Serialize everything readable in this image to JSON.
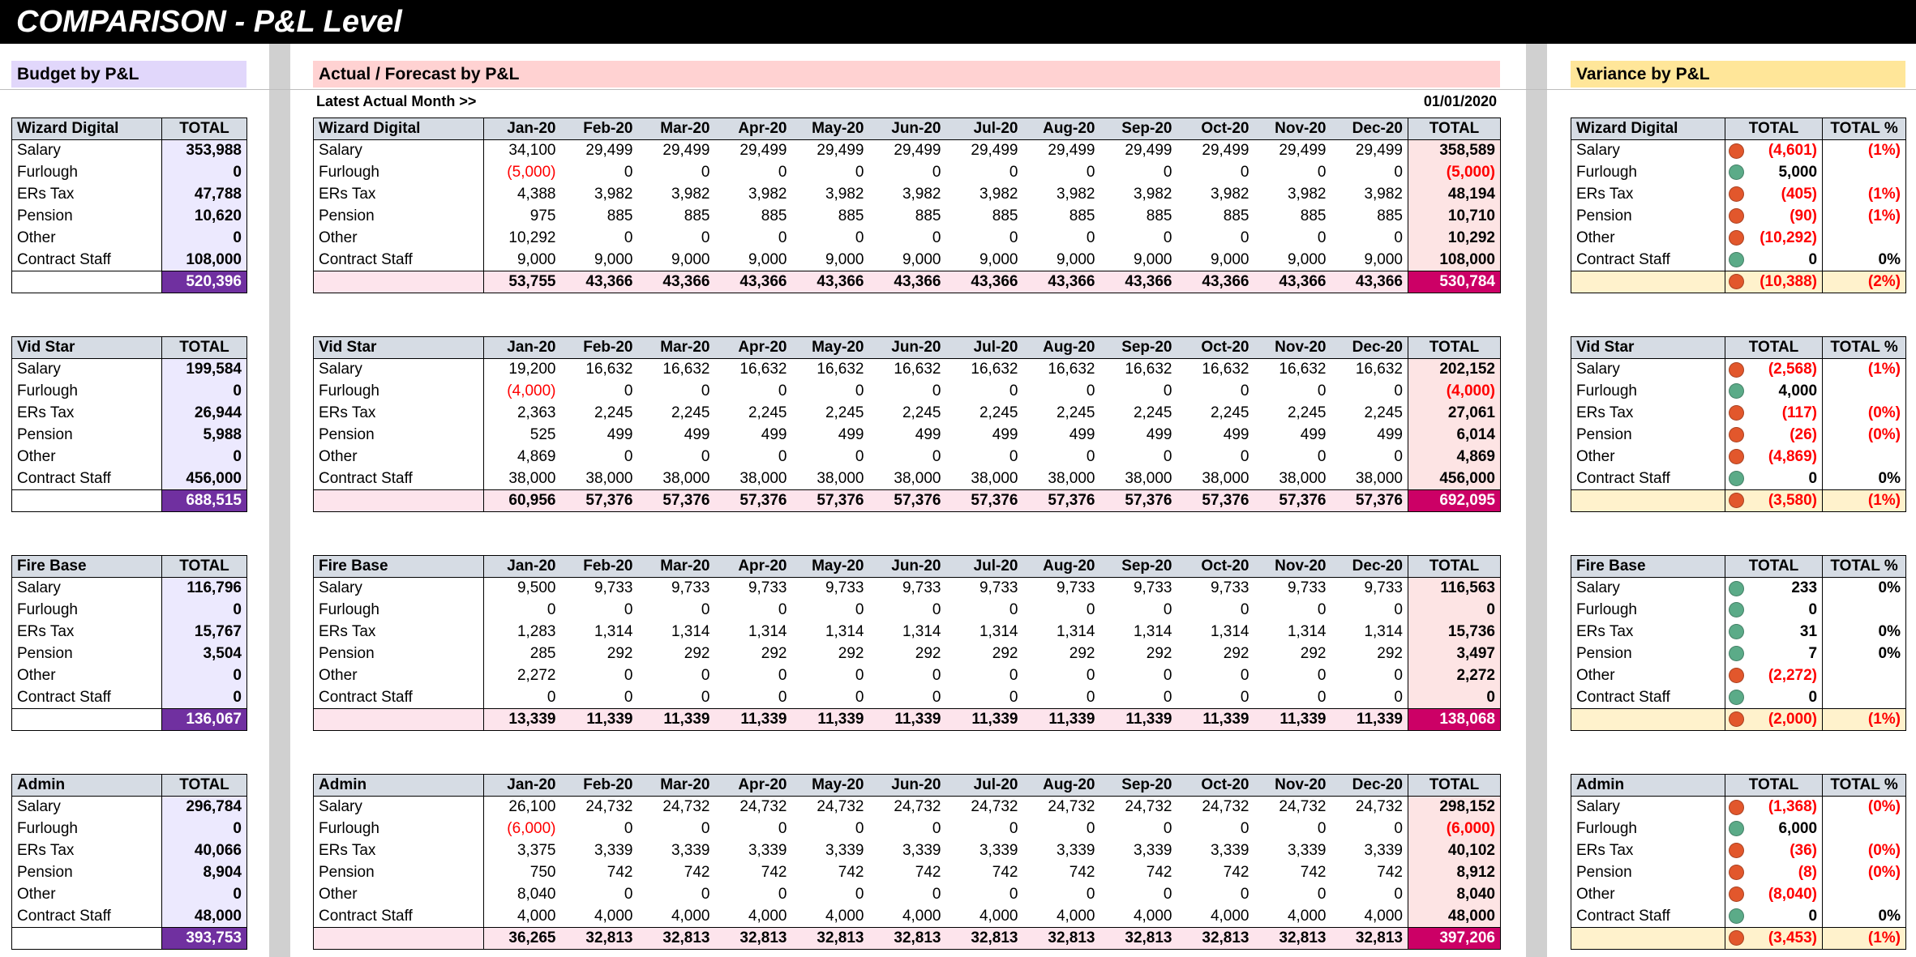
{
  "page_title": "COMPARISON - P&L Level",
  "colors": {
    "budget_header": "#e1d7fb",
    "budget_total_col": "#ece9fe",
    "budget_grand_total": "#7030a0",
    "actual_header": "#ffd2d2",
    "actual_total_col": "#fde4e4",
    "actual_total_row": "#fde4ec",
    "actual_grand_total": "#cc0066",
    "variance_header": "#ffe699",
    "variance_total_row": "#fff2cc",
    "indicator_red": "#e2572c",
    "indicator_green": "#5bab88",
    "negative_text": "#ff0000"
  },
  "budget": {
    "title": "Budget by P&L",
    "total_label": "TOTAL",
    "blocks": [
      {
        "name": "Wizard Digital",
        "rows": [
          {
            "label": "Salary",
            "total": "353,988"
          },
          {
            "label": "Furlough",
            "total": "0"
          },
          {
            "label": "ERs Tax",
            "total": "47,788"
          },
          {
            "label": "Pension",
            "total": "10,620"
          },
          {
            "label": "Other",
            "total": "0"
          },
          {
            "label": "Contract Staff",
            "total": "108,000"
          }
        ],
        "grand_total": "520,396"
      },
      {
        "name": "Vid Star",
        "rows": [
          {
            "label": "Salary",
            "total": "199,584"
          },
          {
            "label": "Furlough",
            "total": "0"
          },
          {
            "label": "ERs Tax",
            "total": "26,944"
          },
          {
            "label": "Pension",
            "total": "5,988"
          },
          {
            "label": "Other",
            "total": "0"
          },
          {
            "label": "Contract Staff",
            "total": "456,000"
          }
        ],
        "grand_total": "688,515"
      },
      {
        "name": "Fire Base",
        "rows": [
          {
            "label": "Salary",
            "total": "116,796"
          },
          {
            "label": "Furlough",
            "total": "0"
          },
          {
            "label": "ERs Tax",
            "total": "15,767"
          },
          {
            "label": "Pension",
            "total": "3,504"
          },
          {
            "label": "Other",
            "total": "0"
          },
          {
            "label": "Contract Staff",
            "total": "0"
          }
        ],
        "grand_total": "136,067"
      },
      {
        "name": "Admin",
        "rows": [
          {
            "label": "Salary",
            "total": "296,784"
          },
          {
            "label": "Furlough",
            "total": "0"
          },
          {
            "label": "ERs Tax",
            "total": "40,066"
          },
          {
            "label": "Pension",
            "total": "8,904"
          },
          {
            "label": "Other",
            "total": "0"
          },
          {
            "label": "Contract Staff",
            "total": "48,000"
          }
        ],
        "grand_total": "393,753"
      }
    ]
  },
  "actual": {
    "title": "Actual / Forecast by P&L",
    "latest_label": "Latest Actual Month >>",
    "latest_value": "01/01/2020",
    "months": [
      "Jan-20",
      "Feb-20",
      "Mar-20",
      "Apr-20",
      "May-20",
      "Jun-20",
      "Jul-20",
      "Aug-20",
      "Sep-20",
      "Oct-20",
      "Nov-20",
      "Dec-20"
    ],
    "total_label": "TOTAL",
    "blocks": [
      {
        "name": "Wizard Digital",
        "rows": [
          {
            "label": "Salary",
            "values": [
              "34,100",
              "29,499",
              "29,499",
              "29,499",
              "29,499",
              "29,499",
              "29,499",
              "29,499",
              "29,499",
              "29,499",
              "29,499",
              "29,499"
            ],
            "total": "358,589"
          },
          {
            "label": "Furlough",
            "values": [
              "(5,000)",
              "0",
              "0",
              "0",
              "0",
              "0",
              "0",
              "0",
              "0",
              "0",
              "0",
              "0"
            ],
            "total": "(5,000)"
          },
          {
            "label": "ERs Tax",
            "values": [
              "4,388",
              "3,982",
              "3,982",
              "3,982",
              "3,982",
              "3,982",
              "3,982",
              "3,982",
              "3,982",
              "3,982",
              "3,982",
              "3,982"
            ],
            "total": "48,194"
          },
          {
            "label": "Pension",
            "values": [
              "975",
              "885",
              "885",
              "885",
              "885",
              "885",
              "885",
              "885",
              "885",
              "885",
              "885",
              "885"
            ],
            "total": "10,710"
          },
          {
            "label": "Other",
            "values": [
              "10,292",
              "0",
              "0",
              "0",
              "0",
              "0",
              "0",
              "0",
              "0",
              "0",
              "0",
              "0"
            ],
            "total": "10,292"
          },
          {
            "label": "Contract Staff",
            "values": [
              "9,000",
              "9,000",
              "9,000",
              "9,000",
              "9,000",
              "9,000",
              "9,000",
              "9,000",
              "9,000",
              "9,000",
              "9,000",
              "9,000"
            ],
            "total": "108,000"
          }
        ],
        "month_totals": [
          "53,755",
          "43,366",
          "43,366",
          "43,366",
          "43,366",
          "43,366",
          "43,366",
          "43,366",
          "43,366",
          "43,366",
          "43,366",
          "43,366"
        ],
        "grand_total": "530,784"
      },
      {
        "name": "Vid Star",
        "rows": [
          {
            "label": "Salary",
            "values": [
              "19,200",
              "16,632",
              "16,632",
              "16,632",
              "16,632",
              "16,632",
              "16,632",
              "16,632",
              "16,632",
              "16,632",
              "16,632",
              "16,632"
            ],
            "total": "202,152"
          },
          {
            "label": "Furlough",
            "values": [
              "(4,000)",
              "0",
              "0",
              "0",
              "0",
              "0",
              "0",
              "0",
              "0",
              "0",
              "0",
              "0"
            ],
            "total": "(4,000)"
          },
          {
            "label": "ERs Tax",
            "values": [
              "2,363",
              "2,245",
              "2,245",
              "2,245",
              "2,245",
              "2,245",
              "2,245",
              "2,245",
              "2,245",
              "2,245",
              "2,245",
              "2,245"
            ],
            "total": "27,061"
          },
          {
            "label": "Pension",
            "values": [
              "525",
              "499",
              "499",
              "499",
              "499",
              "499",
              "499",
              "499",
              "499",
              "499",
              "499",
              "499"
            ],
            "total": "6,014"
          },
          {
            "label": "Other",
            "values": [
              "4,869",
              "0",
              "0",
              "0",
              "0",
              "0",
              "0",
              "0",
              "0",
              "0",
              "0",
              "0"
            ],
            "total": "4,869"
          },
          {
            "label": "Contract Staff",
            "values": [
              "38,000",
              "38,000",
              "38,000",
              "38,000",
              "38,000",
              "38,000",
              "38,000",
              "38,000",
              "38,000",
              "38,000",
              "38,000",
              "38,000"
            ],
            "total": "456,000"
          }
        ],
        "month_totals": [
          "60,956",
          "57,376",
          "57,376",
          "57,376",
          "57,376",
          "57,376",
          "57,376",
          "57,376",
          "57,376",
          "57,376",
          "57,376",
          "57,376"
        ],
        "grand_total": "692,095"
      },
      {
        "name": "Fire Base",
        "rows": [
          {
            "label": "Salary",
            "values": [
              "9,500",
              "9,733",
              "9,733",
              "9,733",
              "9,733",
              "9,733",
              "9,733",
              "9,733",
              "9,733",
              "9,733",
              "9,733",
              "9,733"
            ],
            "total": "116,563"
          },
          {
            "label": "Furlough",
            "values": [
              "0",
              "0",
              "0",
              "0",
              "0",
              "0",
              "0",
              "0",
              "0",
              "0",
              "0",
              "0"
            ],
            "total": "0"
          },
          {
            "label": "ERs Tax",
            "values": [
              "1,283",
              "1,314",
              "1,314",
              "1,314",
              "1,314",
              "1,314",
              "1,314",
              "1,314",
              "1,314",
              "1,314",
              "1,314",
              "1,314"
            ],
            "total": "15,736"
          },
          {
            "label": "Pension",
            "values": [
              "285",
              "292",
              "292",
              "292",
              "292",
              "292",
              "292",
              "292",
              "292",
              "292",
              "292",
              "292"
            ],
            "total": "3,497"
          },
          {
            "label": "Other",
            "values": [
              "2,272",
              "0",
              "0",
              "0",
              "0",
              "0",
              "0",
              "0",
              "0",
              "0",
              "0",
              "0"
            ],
            "total": "2,272"
          },
          {
            "label": "Contract Staff",
            "values": [
              "0",
              "0",
              "0",
              "0",
              "0",
              "0",
              "0",
              "0",
              "0",
              "0",
              "0",
              "0"
            ],
            "total": "0"
          }
        ],
        "month_totals": [
          "13,339",
          "11,339",
          "11,339",
          "11,339",
          "11,339",
          "11,339",
          "11,339",
          "11,339",
          "11,339",
          "11,339",
          "11,339",
          "11,339"
        ],
        "grand_total": "138,068"
      },
      {
        "name": "Admin",
        "rows": [
          {
            "label": "Salary",
            "values": [
              "26,100",
              "24,732",
              "24,732",
              "24,732",
              "24,732",
              "24,732",
              "24,732",
              "24,732",
              "24,732",
              "24,732",
              "24,732",
              "24,732"
            ],
            "total": "298,152"
          },
          {
            "label": "Furlough",
            "values": [
              "(6,000)",
              "0",
              "0",
              "0",
              "0",
              "0",
              "0",
              "0",
              "0",
              "0",
              "0",
              "0"
            ],
            "total": "(6,000)"
          },
          {
            "label": "ERs Tax",
            "values": [
              "3,375",
              "3,339",
              "3,339",
              "3,339",
              "3,339",
              "3,339",
              "3,339",
              "3,339",
              "3,339",
              "3,339",
              "3,339",
              "3,339"
            ],
            "total": "40,102"
          },
          {
            "label": "Pension",
            "values": [
              "750",
              "742",
              "742",
              "742",
              "742",
              "742",
              "742",
              "742",
              "742",
              "742",
              "742",
              "742"
            ],
            "total": "8,912"
          },
          {
            "label": "Other",
            "values": [
              "8,040",
              "0",
              "0",
              "0",
              "0",
              "0",
              "0",
              "0",
              "0",
              "0",
              "0",
              "0"
            ],
            "total": "8,040"
          },
          {
            "label": "Contract Staff",
            "values": [
              "4,000",
              "4,000",
              "4,000",
              "4,000",
              "4,000",
              "4,000",
              "4,000",
              "4,000",
              "4,000",
              "4,000",
              "4,000",
              "4,000"
            ],
            "total": "48,000"
          }
        ],
        "month_totals": [
          "36,265",
          "32,813",
          "32,813",
          "32,813",
          "32,813",
          "32,813",
          "32,813",
          "32,813",
          "32,813",
          "32,813",
          "32,813",
          "32,813"
        ],
        "grand_total": "397,206"
      }
    ]
  },
  "variance": {
    "title": "Variance by P&L",
    "total_label": "TOTAL",
    "pct_label": "TOTAL %",
    "blocks": [
      {
        "name": "Wizard Digital",
        "rows": [
          {
            "label": "Salary",
            "status": "red",
            "total": "(4,601)",
            "pct": "(1%)"
          },
          {
            "label": "Furlough",
            "status": "green",
            "total": "5,000",
            "pct": ""
          },
          {
            "label": "ERs Tax",
            "status": "red",
            "total": "(405)",
            "pct": "(1%)"
          },
          {
            "label": "Pension",
            "status": "red",
            "total": "(90)",
            "pct": "(1%)"
          },
          {
            "label": "Other",
            "status": "red",
            "total": "(10,292)",
            "pct": ""
          },
          {
            "label": "Contract Staff",
            "status": "green",
            "total": "0",
            "pct": "0%"
          }
        ],
        "grand": {
          "status": "red",
          "total": "(10,388)",
          "pct": "(2%)"
        }
      },
      {
        "name": "Vid Star",
        "rows": [
          {
            "label": "Salary",
            "status": "red",
            "total": "(2,568)",
            "pct": "(1%)"
          },
          {
            "label": "Furlough",
            "status": "green",
            "total": "4,000",
            "pct": ""
          },
          {
            "label": "ERs Tax",
            "status": "red",
            "total": "(117)",
            "pct": "(0%)"
          },
          {
            "label": "Pension",
            "status": "red",
            "total": "(26)",
            "pct": "(0%)"
          },
          {
            "label": "Other",
            "status": "red",
            "total": "(4,869)",
            "pct": ""
          },
          {
            "label": "Contract Staff",
            "status": "green",
            "total": "0",
            "pct": "0%"
          }
        ],
        "grand": {
          "status": "red",
          "total": "(3,580)",
          "pct": "(1%)"
        }
      },
      {
        "name": "Fire Base",
        "rows": [
          {
            "label": "Salary",
            "status": "green",
            "total": "233",
            "pct": "0%"
          },
          {
            "label": "Furlough",
            "status": "green",
            "total": "0",
            "pct": ""
          },
          {
            "label": "ERs Tax",
            "status": "green",
            "total": "31",
            "pct": "0%"
          },
          {
            "label": "Pension",
            "status": "green",
            "total": "7",
            "pct": "0%"
          },
          {
            "label": "Other",
            "status": "red",
            "total": "(2,272)",
            "pct": ""
          },
          {
            "label": "Contract Staff",
            "status": "green",
            "total": "0",
            "pct": ""
          }
        ],
        "grand": {
          "status": "red",
          "total": "(2,000)",
          "pct": "(1%)"
        }
      },
      {
        "name": "Admin",
        "rows": [
          {
            "label": "Salary",
            "status": "red",
            "total": "(1,368)",
            "pct": "(0%)"
          },
          {
            "label": "Furlough",
            "status": "green",
            "total": "6,000",
            "pct": ""
          },
          {
            "label": "ERs Tax",
            "status": "red",
            "total": "(36)",
            "pct": "(0%)"
          },
          {
            "label": "Pension",
            "status": "red",
            "total": "(8)",
            "pct": "(0%)"
          },
          {
            "label": "Other",
            "status": "red",
            "total": "(8,040)",
            "pct": ""
          },
          {
            "label": "Contract Staff",
            "status": "green",
            "total": "0",
            "pct": "0%"
          }
        ],
        "grand": {
          "status": "red",
          "total": "(3,453)",
          "pct": "(1%)"
        }
      }
    ]
  }
}
